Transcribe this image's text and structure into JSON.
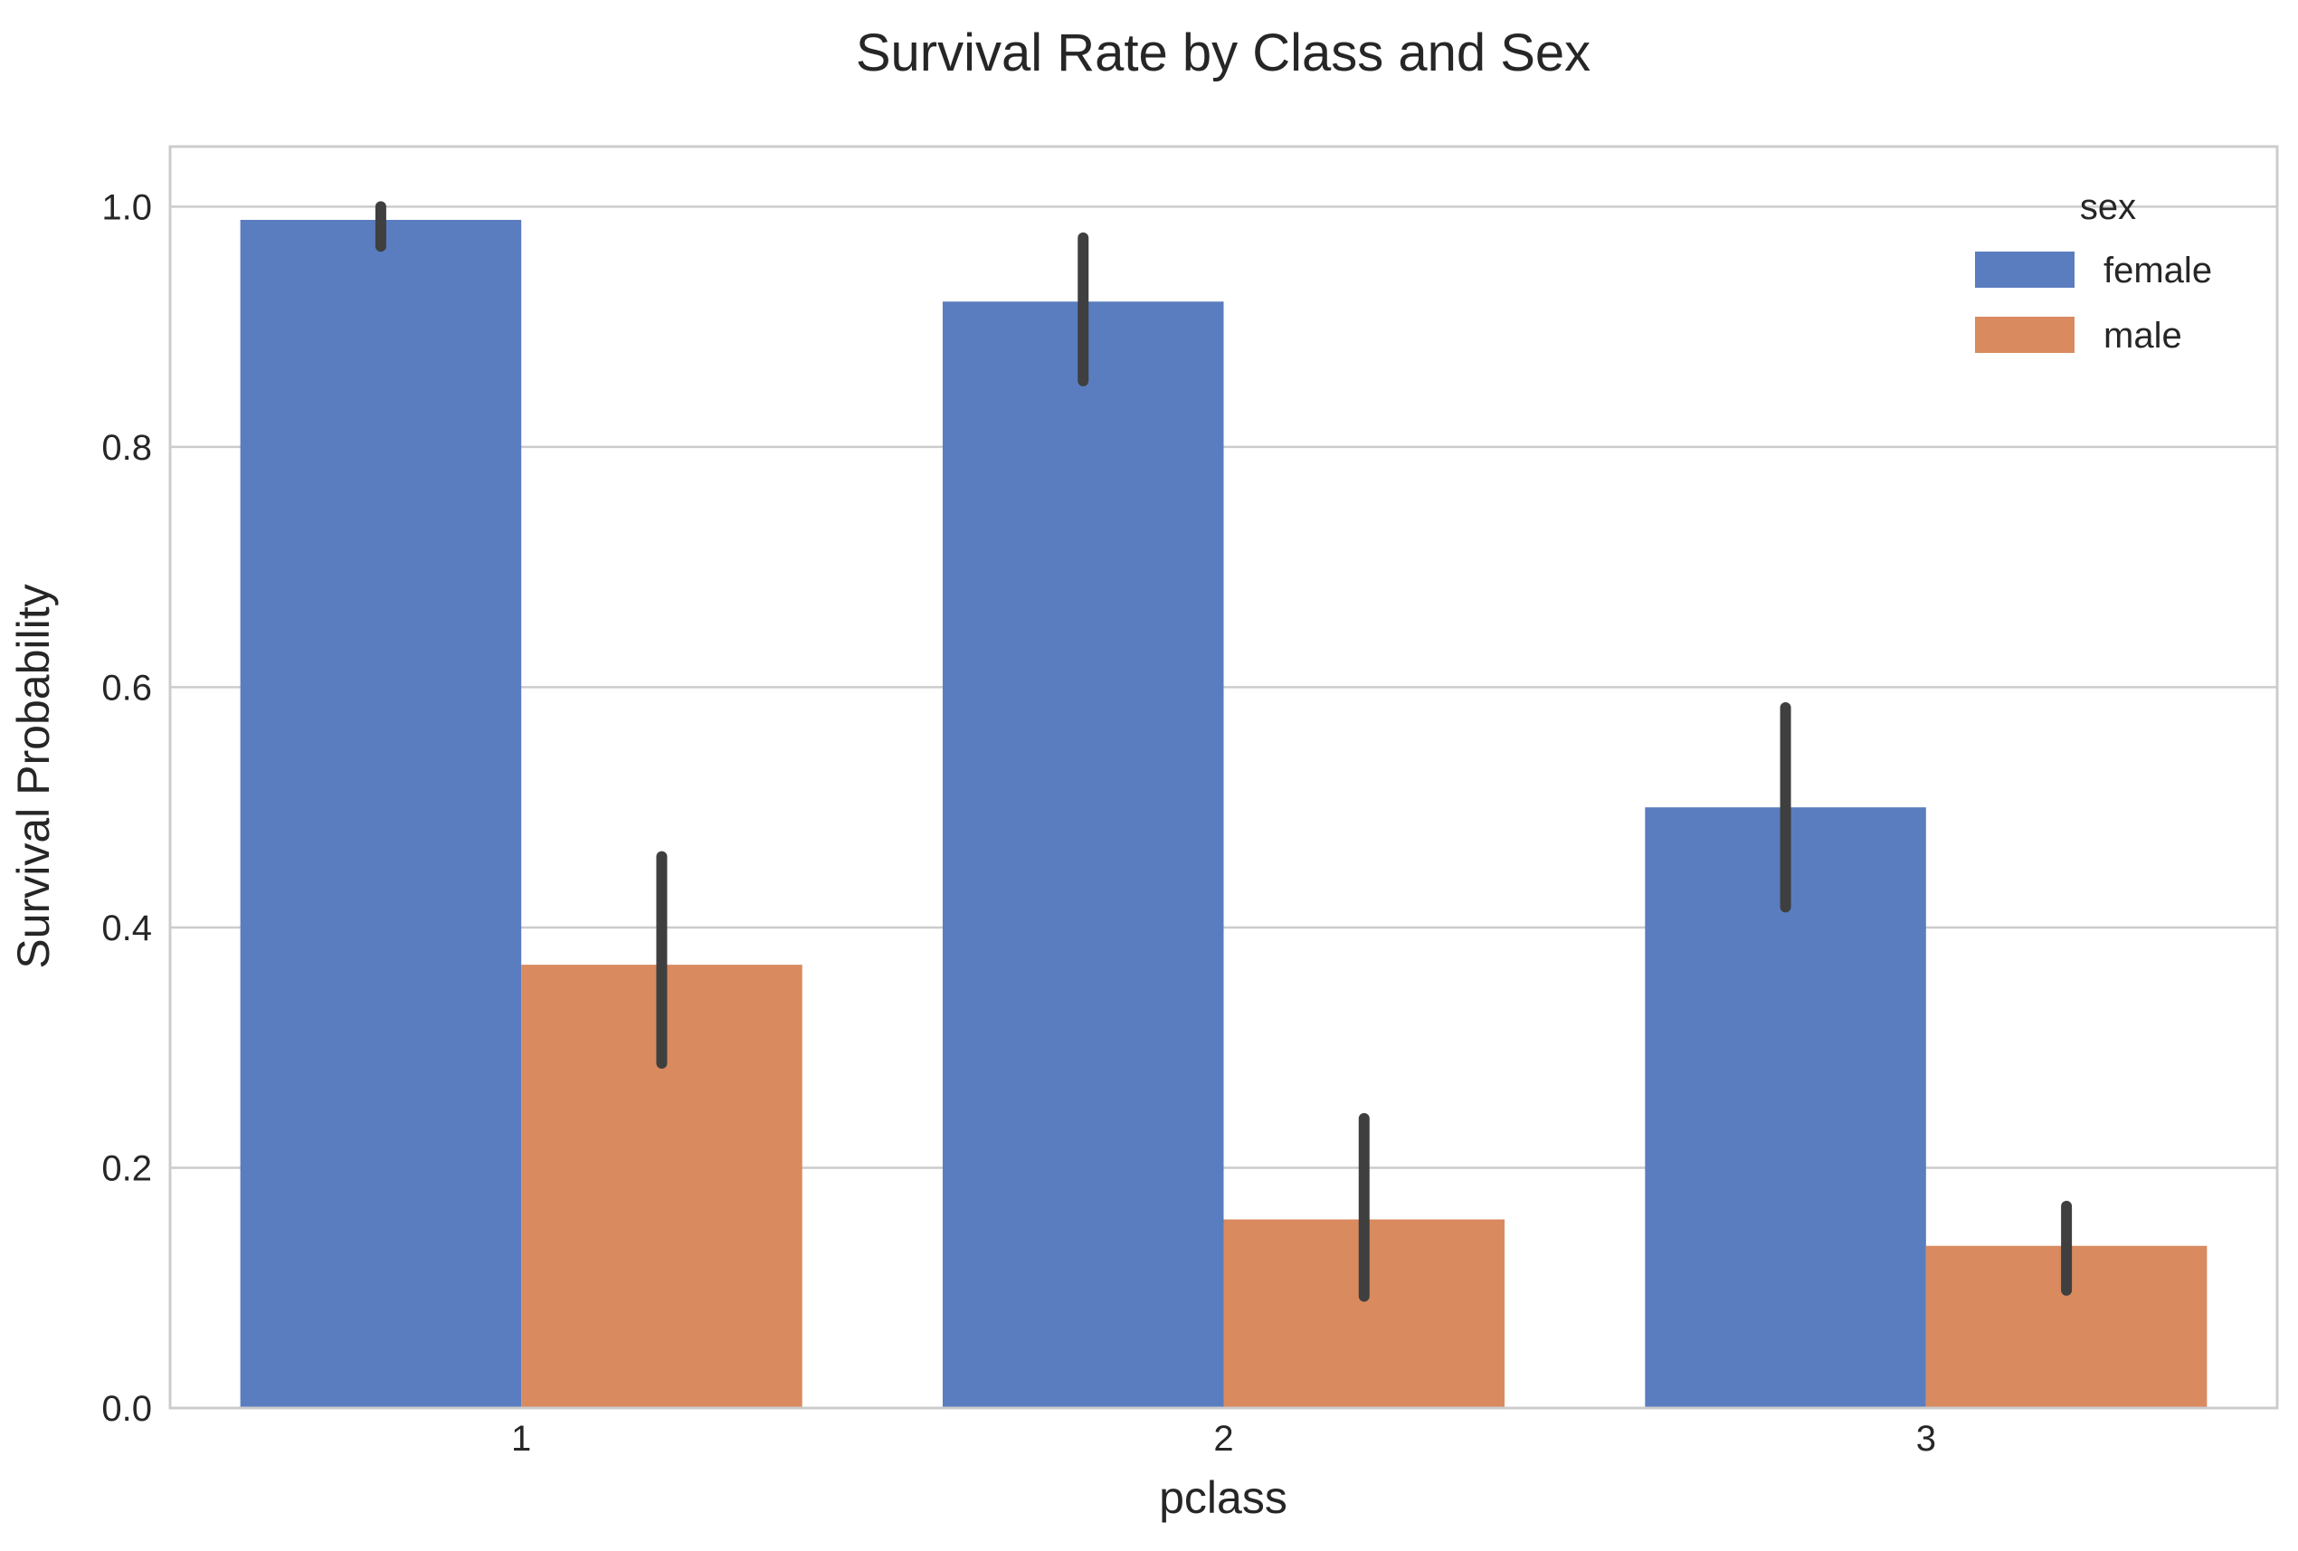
{
  "chart_data": {
    "type": "bar",
    "title": "Survival Rate by Class and Sex",
    "xlabel": "pclass",
    "ylabel": "Survival Probability",
    "categories": [
      "1",
      "2",
      "3"
    ],
    "ylim": [
      0,
      1.05
    ],
    "yticks": [
      "0.0",
      "0.2",
      "0.4",
      "0.6",
      "0.8",
      "1.0"
    ],
    "grid": "horizontal",
    "legend": {
      "title": "sex",
      "placement": "top-right"
    },
    "series": [
      {
        "name": "female",
        "color": "#5a7dbf",
        "values": [
          0.989,
          0.921,
          0.5
        ],
        "error_low": [
          0.967,
          0.855,
          0.417
        ],
        "error_high": [
          1.0,
          0.974,
          0.583
        ]
      },
      {
        "name": "male",
        "color": "#d98a5f",
        "values": [
          0.369,
          0.157,
          0.135
        ],
        "error_low": [
          0.287,
          0.093,
          0.098
        ],
        "error_high": [
          0.459,
          0.241,
          0.168
        ]
      }
    ],
    "error_bar_color": "#3f3f3f"
  }
}
